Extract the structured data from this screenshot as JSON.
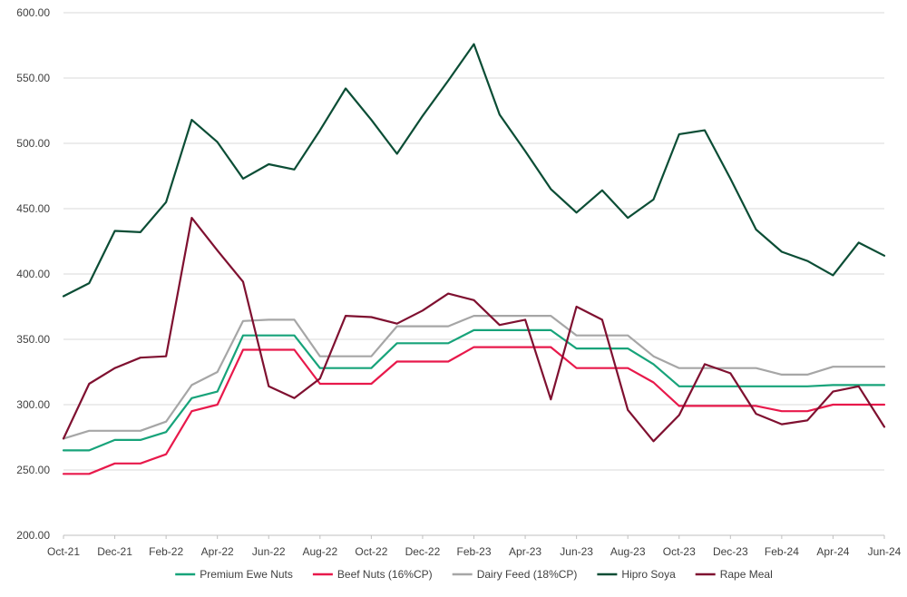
{
  "chart_data": {
    "type": "line",
    "title": "",
    "xlabel": "",
    "ylabel": "",
    "ylim": [
      200,
      600
    ],
    "yticks": [
      "200.00",
      "250.00",
      "300.00",
      "350.00",
      "400.00",
      "450.00",
      "500.00",
      "550.00",
      "600.00"
    ],
    "grid": true,
    "legend_position": "bottom",
    "x": [
      "Oct-21",
      "Nov-21",
      "Dec-21",
      "Jan-22",
      "Feb-22",
      "Mar-22",
      "Apr-22",
      "May-22",
      "Jun-22",
      "Jul-22",
      "Aug-22",
      "Sep-22",
      "Oct-22",
      "Nov-22",
      "Dec-22",
      "Jan-23",
      "Feb-23",
      "Mar-23",
      "Apr-23",
      "May-23",
      "Jun-23",
      "Jul-23",
      "Aug-23",
      "Sep-23",
      "Oct-23",
      "Nov-23",
      "Dec-23",
      "Jan-24",
      "Feb-24",
      "Mar-24",
      "Apr-24",
      "May-24",
      "Jun-24"
    ],
    "xtick_labels": [
      "Oct-21",
      "Dec-21",
      "Feb-22",
      "Apr-22",
      "Jun-22",
      "Aug-22",
      "Oct-22",
      "Dec-22",
      "Feb-23",
      "Apr-23",
      "Jun-23",
      "Aug-23",
      "Oct-23",
      "Dec-23",
      "Feb-24",
      "Apr-24",
      "Jun-24"
    ],
    "series": [
      {
        "name": "Premium Ewe Nuts",
        "color": "#17a37a",
        "values": [
          265,
          265,
          273,
          273,
          279,
          305,
          310,
          353,
          353,
          353,
          328,
          328,
          328,
          347,
          347,
          347,
          357,
          357,
          357,
          357,
          343,
          343,
          343,
          331,
          314,
          314,
          314,
          314,
          314,
          314,
          315,
          315,
          315
        ]
      },
      {
        "name": "Beef Nuts (16%CP)",
        "color": "#e8194b",
        "values": [
          247,
          247,
          255,
          255,
          262,
          295,
          300,
          342,
          342,
          342,
          316,
          316,
          316,
          333,
          333,
          333,
          344,
          344,
          344,
          344,
          328,
          328,
          328,
          317,
          299,
          299,
          299,
          299,
          295,
          295,
          300,
          300,
          300
        ]
      },
      {
        "name": "Dairy Feed (18%CP)",
        "color": "#a6a6a6",
        "values": [
          274,
          280,
          280,
          280,
          287,
          315,
          325,
          364,
          365,
          365,
          337,
          337,
          337,
          360,
          360,
          360,
          368,
          368,
          368,
          368,
          353,
          353,
          353,
          337,
          328,
          328,
          328,
          328,
          323,
          323,
          329,
          329,
          329
        ]
      },
      {
        "name": "Hipro Soya",
        "color": "#0b4d35",
        "values": [
          383,
          393,
          433,
          432,
          455,
          518,
          501,
          473,
          484,
          480,
          510,
          542,
          518,
          492,
          521,
          548,
          576,
          522,
          494,
          465,
          447,
          464,
          443,
          457,
          507,
          510,
          473,
          434,
          417,
          410,
          399,
          424,
          414
        ]
      },
      {
        "name": "Rape Meal",
        "color": "#7f1030",
        "values": [
          274,
          316,
          328,
          336,
          337,
          443,
          418,
          394,
          314,
          305,
          320,
          368,
          367,
          362,
          372,
          385,
          380,
          361,
          365,
          304,
          375,
          365,
          296,
          272,
          292,
          331,
          324,
          293,
          285,
          288,
          310,
          314,
          283
        ]
      }
    ]
  }
}
